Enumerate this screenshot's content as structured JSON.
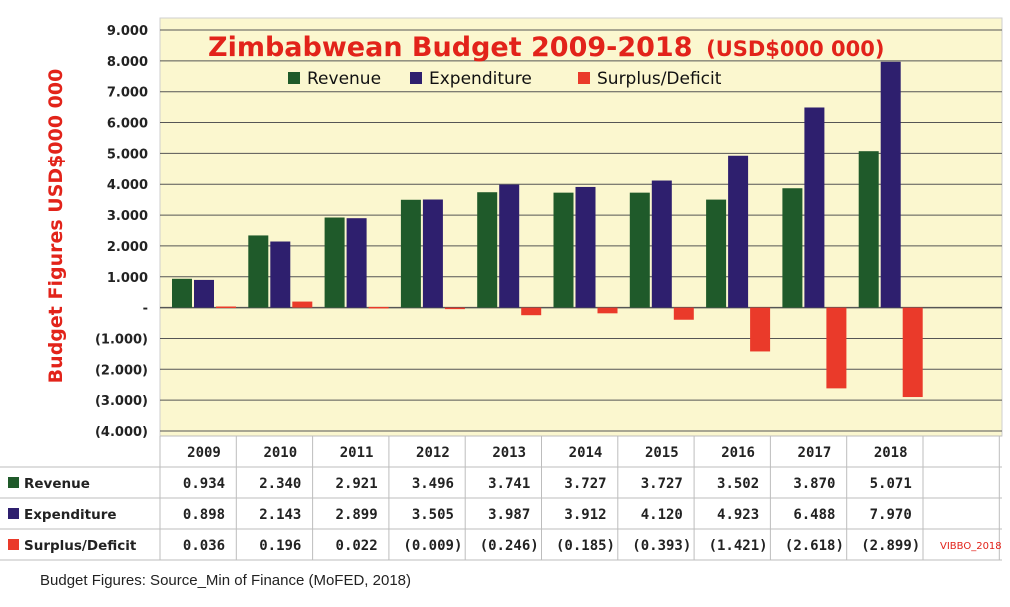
{
  "caption": "Budget Figures: Source_Min of Finance (MoFED, 2018)",
  "credit": "VIBBO_2018",
  "chart_data": {
    "type": "bar",
    "title": "Zimbabwean Budget 2009-2018",
    "title_unit": "(USD$000 000)",
    "ylabel": "Budget Figures USD$000 000",
    "categories": [
      "2009",
      "2010",
      "2011",
      "2012",
      "2013",
      "2014",
      "2015",
      "2016",
      "2017",
      "2018"
    ],
    "ylim": [
      -4000,
      9000
    ],
    "yticks": [
      9000,
      8000,
      7000,
      6000,
      5000,
      4000,
      3000,
      2000,
      1000,
      0,
      -1000,
      -2000,
      -3000,
      -4000
    ],
    "ytick_labels": [
      "9.000",
      "8.000",
      "7.000",
      "6.000",
      "5.000",
      "4.000",
      "3.000",
      "2.000",
      "1.000",
      "-",
      "(1.000)",
      "(2.000)",
      "(3.000)",
      "(4.000)"
    ],
    "grid": true,
    "legend": "top",
    "series": [
      {
        "name": "Revenue",
        "color": "#1f5a2a",
        "values": [
          934,
          2340,
          2921,
          3496,
          3741,
          3727,
          3727,
          3502,
          3870,
          5071
        ],
        "labels": [
          "0.934",
          "2.340",
          "2.921",
          "3.496",
          "3.741",
          "3.727",
          "3.727",
          "3.502",
          "3.870",
          "5.071"
        ]
      },
      {
        "name": "Expenditure",
        "color": "#2e1f6e",
        "values": [
          898,
          2143,
          2899,
          3505,
          3987,
          3912,
          4120,
          4923,
          6488,
          7970
        ],
        "labels": [
          "0.898",
          "2.143",
          "2.899",
          "3.505",
          "3.987",
          "3.912",
          "4.120",
          "4.923",
          "6.488",
          "7.970"
        ]
      },
      {
        "name": "Surplus/Deficit",
        "color": "#ea3a2a",
        "values": [
          36,
          196,
          22,
          -9,
          -246,
          -185,
          -393,
          -1421,
          -2618,
          -2899
        ],
        "labels": [
          "0.036",
          "0.196",
          "0.022",
          "(0.009)",
          "(0.246)",
          "(0.185)",
          "(0.393)",
          "(1.421)",
          "(2.618)",
          "(2.899)"
        ]
      }
    ]
  }
}
